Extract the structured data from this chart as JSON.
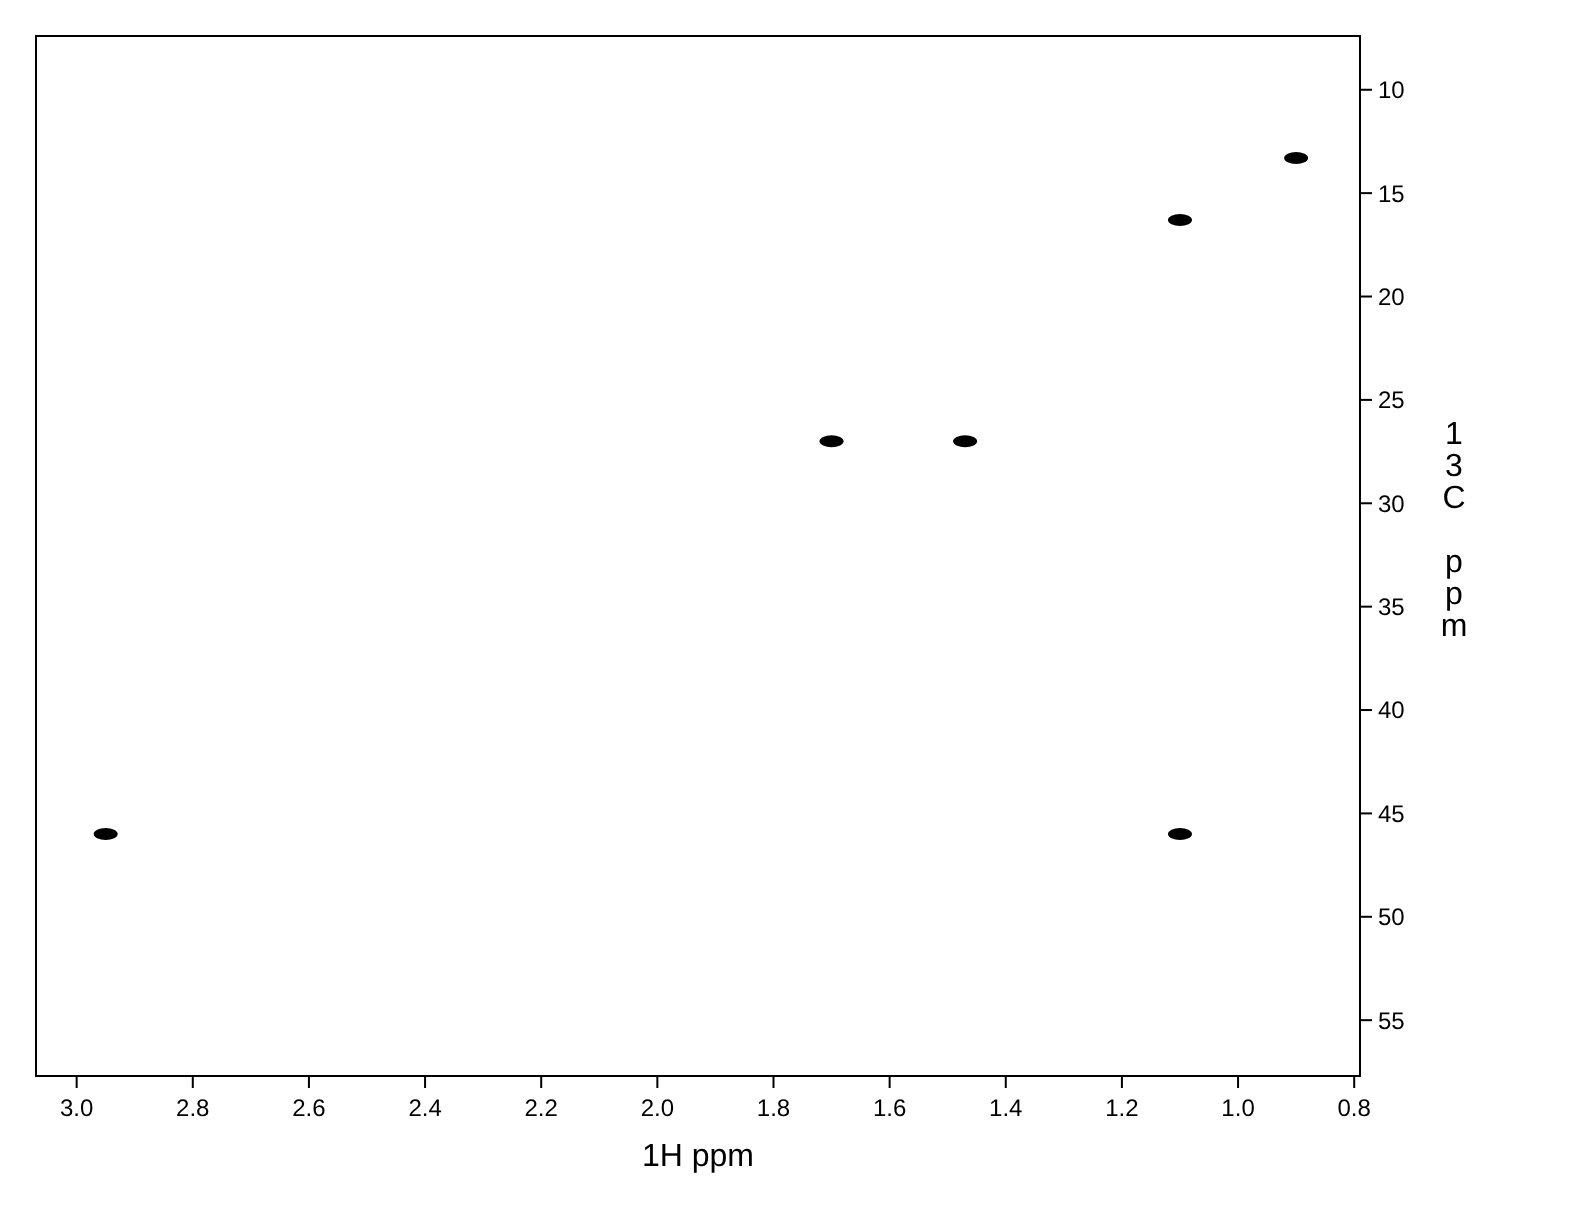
{
  "chart_data": {
    "type": "scatter",
    "xlabel": "1H ppm",
    "ylabel": "13C ppm",
    "xlim": [
      3.07,
      0.79
    ],
    "ylim": [
      57.7,
      7.4
    ],
    "xticks": [
      {
        "value": 3.0,
        "label": "3.0"
      },
      2.8,
      2.6,
      2.4,
      2.2,
      {
        "value": 2.0,
        "label": "2.0"
      },
      1.8,
      1.6,
      1.4,
      1.2,
      {
        "value": 1.0,
        "label": "1.0"
      },
      0.8
    ],
    "yticks": [
      10,
      15,
      20,
      25,
      30,
      35,
      40,
      45,
      50,
      55
    ],
    "series": [
      {
        "color": "#000000",
        "x": [
          2.95,
          1.7,
          1.47,
          1.1,
          0.9,
          1.1
        ],
        "values": [
          46.0,
          27.0,
          27.0,
          16.3,
          13.3,
          46.0
        ]
      }
    ],
    "marker": "circle",
    "grid": false
  }
}
